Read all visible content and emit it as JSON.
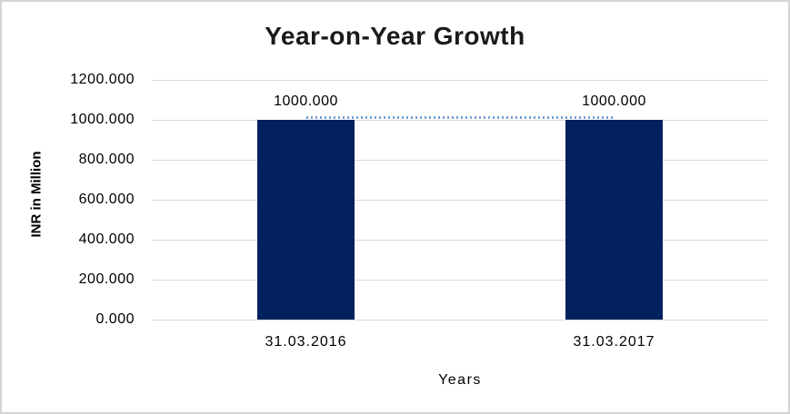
{
  "chart": {
    "title": "Year-on-Year Growth",
    "x_axis_title": "Years",
    "y_axis_title": "INR in Million"
  },
  "chart_data": {
    "type": "bar",
    "title": "Year-on-Year Growth",
    "xlabel": "Years",
    "ylabel": "INR in Million",
    "categories": [
      "31.03.2016",
      "31.03.2017"
    ],
    "series": [
      {
        "name": "value-bars",
        "type": "bar",
        "values": [
          1000.0,
          1000.0
        ]
      },
      {
        "name": "connector",
        "type": "line",
        "style": "dotted",
        "values": [
          1000.0,
          1000.0
        ]
      }
    ],
    "data_labels": [
      "1000.000",
      "1000.000"
    ],
    "y_ticks": [
      "1200.000",
      "1000.000",
      "800.000",
      "600.000",
      "400.000",
      "200.000",
      "0.000"
    ],
    "ylim": [
      0,
      1200
    ],
    "y_tick_step": 200,
    "grid": true,
    "legend": "none",
    "colors": {
      "bar": "#03215f",
      "connector_dot": "#74a2d6",
      "gridline": "#d9d9d9",
      "frame": "#d5d5d5",
      "title_text": "#1a1a1a",
      "axis_text": "#000000"
    }
  }
}
